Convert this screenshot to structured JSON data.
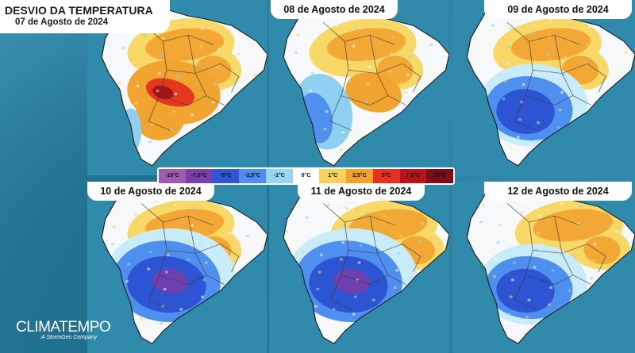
{
  "header": {
    "title": "DESVIO DA TEMPERATURA",
    "date": "07 de Agosto de 2024"
  },
  "panels": [
    {
      "date": "07 de Agosto de 2024",
      "label_visible": false,
      "north": "warm",
      "south": "very_warm"
    },
    {
      "date": "08 de Agosto de 2024",
      "label_visible": true,
      "north": "warm",
      "south": "cool"
    },
    {
      "date": "09 de Agosto de 2024",
      "label_visible": true,
      "north": "warm",
      "south": "cold"
    },
    {
      "date": "10 de Agosto de 2024",
      "label_visible": true,
      "north": "warm",
      "south": "very_cold"
    },
    {
      "date": "11 de Agosto de 2024",
      "label_visible": true,
      "north": "warm_east",
      "south": "very_cold"
    },
    {
      "date": "12 de Agosto de 2024",
      "label_visible": true,
      "north": "warm_east",
      "south": "cold"
    }
  ],
  "legend": [
    {
      "label": "-10°C",
      "color": "#a05ab0"
    },
    {
      "label": "-7,5°C",
      "color": "#7a3fa8"
    },
    {
      "label": "-5°C",
      "color": "#2f55d4"
    },
    {
      "label": "-2,5°C",
      "color": "#4e8ef0"
    },
    {
      "label": "-1°C",
      "color": "#98d6f4"
    },
    {
      "label": "0°C",
      "color": "#ffffff"
    },
    {
      "label": "1°C",
      "color": "#f7d15a"
    },
    {
      "label": "2,5°C",
      "color": "#f2a22a"
    },
    {
      "label": "5°C",
      "color": "#e3321f"
    },
    {
      "label": "7,5°C",
      "color": "#b3151b"
    },
    {
      "label": "10°C",
      "color": "#7b0d1a"
    }
  ],
  "brand": {
    "name": "CLIMATEMPO",
    "tagline": "A StormGeo Company"
  }
}
